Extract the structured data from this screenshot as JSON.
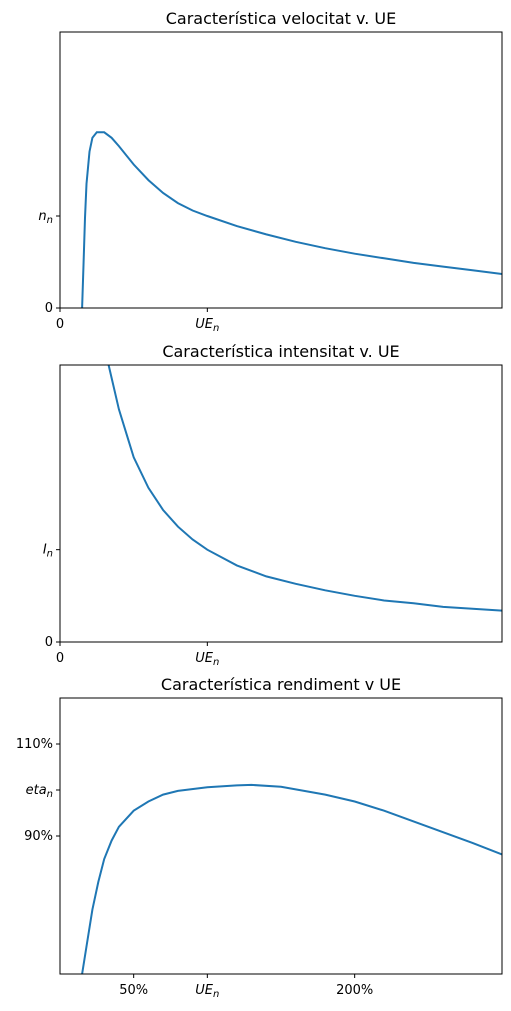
{
  "chart_data": [
    {
      "type": "line",
      "title": "Característica velocitat v. UE",
      "xlabel": "",
      "ylabel": "",
      "xlim": [
        0,
        3
      ],
      "ylim": [
        0,
        3
      ],
      "grid": false,
      "x_ticks": [
        {
          "value": 0,
          "label": "0"
        },
        {
          "value": 1,
          "label": "UE",
          "sub": "n"
        }
      ],
      "y_ticks": [
        {
          "value": 0,
          "label": "0"
        },
        {
          "value": 1,
          "label": "n",
          "sub": "n"
        }
      ],
      "series": [
        {
          "color": "#1f77b4",
          "points": [
            [
              0.15,
              0
            ],
            [
              0.16,
              0.5
            ],
            [
              0.17,
              0.98
            ],
            [
              0.18,
              1.35
            ],
            [
              0.2,
              1.7
            ],
            [
              0.22,
              1.85
            ],
            [
              0.25,
              1.91
            ],
            [
              0.3,
              1.91
            ],
            [
              0.35,
              1.85
            ],
            [
              0.4,
              1.76
            ],
            [
              0.5,
              1.56
            ],
            [
              0.6,
              1.39
            ],
            [
              0.7,
              1.25
            ],
            [
              0.8,
              1.14
            ],
            [
              0.9,
              1.06
            ],
            [
              1.0,
              1.0
            ],
            [
              1.2,
              0.89
            ],
            [
              1.4,
              0.8
            ],
            [
              1.6,
              0.72
            ],
            [
              1.8,
              0.65
            ],
            [
              2.0,
              0.59
            ],
            [
              2.2,
              0.54
            ],
            [
              2.4,
              0.49
            ],
            [
              2.6,
              0.45
            ],
            [
              2.8,
              0.41
            ],
            [
              3.0,
              0.37
            ]
          ]
        }
      ]
    },
    {
      "type": "line",
      "title": "Característica intensitat v. UE",
      "xlabel": "",
      "ylabel": "",
      "xlim": [
        0,
        3
      ],
      "ylim": [
        0,
        3
      ],
      "grid": false,
      "x_ticks": [
        {
          "value": 0,
          "label": "0"
        },
        {
          "value": 1,
          "label": "UE",
          "sub": "n"
        }
      ],
      "y_ticks": [
        {
          "value": 0,
          "label": "0"
        },
        {
          "value": 1,
          "label": "I",
          "sub": "n"
        }
      ],
      "series": [
        {
          "color": "#1f77b4",
          "points": [
            [
              0.33,
              3.0
            ],
            [
              0.4,
              2.52
            ],
            [
              0.5,
              2.0
            ],
            [
              0.6,
              1.67
            ],
            [
              0.7,
              1.43
            ],
            [
              0.8,
              1.25
            ],
            [
              0.9,
              1.11
            ],
            [
              1.0,
              1.0
            ],
            [
              1.2,
              0.83
            ],
            [
              1.4,
              0.71
            ],
            [
              1.6,
              0.63
            ],
            [
              1.8,
              0.56
            ],
            [
              2.0,
              0.5
            ],
            [
              2.2,
              0.45
            ],
            [
              2.4,
              0.42
            ],
            [
              2.6,
              0.38
            ],
            [
              2.8,
              0.36
            ],
            [
              3.0,
              0.34
            ]
          ]
        }
      ]
    },
    {
      "type": "line",
      "title": "Característica rendiment v UE",
      "xlabel": "",
      "ylabel": "",
      "xlim": [
        0,
        3
      ],
      "ylim": [
        0.6,
        1.2
      ],
      "grid": false,
      "x_ticks": [
        {
          "value": 0.5,
          "label": "50%"
        },
        {
          "value": 1,
          "label": "UE",
          "sub": "n"
        },
        {
          "value": 2,
          "label": "200%"
        }
      ],
      "y_ticks": [
        {
          "value": 0.9,
          "label": "90%"
        },
        {
          "value": 1.0,
          "label": "eta",
          "sub": "n"
        },
        {
          "value": 1.1,
          "label": "110%"
        }
      ],
      "series": [
        {
          "color": "#1f77b4",
          "points": [
            [
              0.15,
              0.6
            ],
            [
              0.18,
              0.66
            ],
            [
              0.22,
              0.74
            ],
            [
              0.26,
              0.8
            ],
            [
              0.3,
              0.85
            ],
            [
              0.35,
              0.89
            ],
            [
              0.4,
              0.92
            ],
            [
              0.5,
              0.955
            ],
            [
              0.6,
              0.975
            ],
            [
              0.7,
              0.99
            ],
            [
              0.8,
              0.998
            ],
            [
              1.0,
              1.006
            ],
            [
              1.2,
              1.01
            ],
            [
              1.3,
              1.011
            ],
            [
              1.5,
              1.007
            ],
            [
              1.8,
              0.99
            ],
            [
              2.0,
              0.975
            ],
            [
              2.2,
              0.955
            ],
            [
              2.5,
              0.92
            ],
            [
              2.8,
              0.885
            ],
            [
              3.0,
              0.86
            ]
          ]
        }
      ]
    }
  ]
}
